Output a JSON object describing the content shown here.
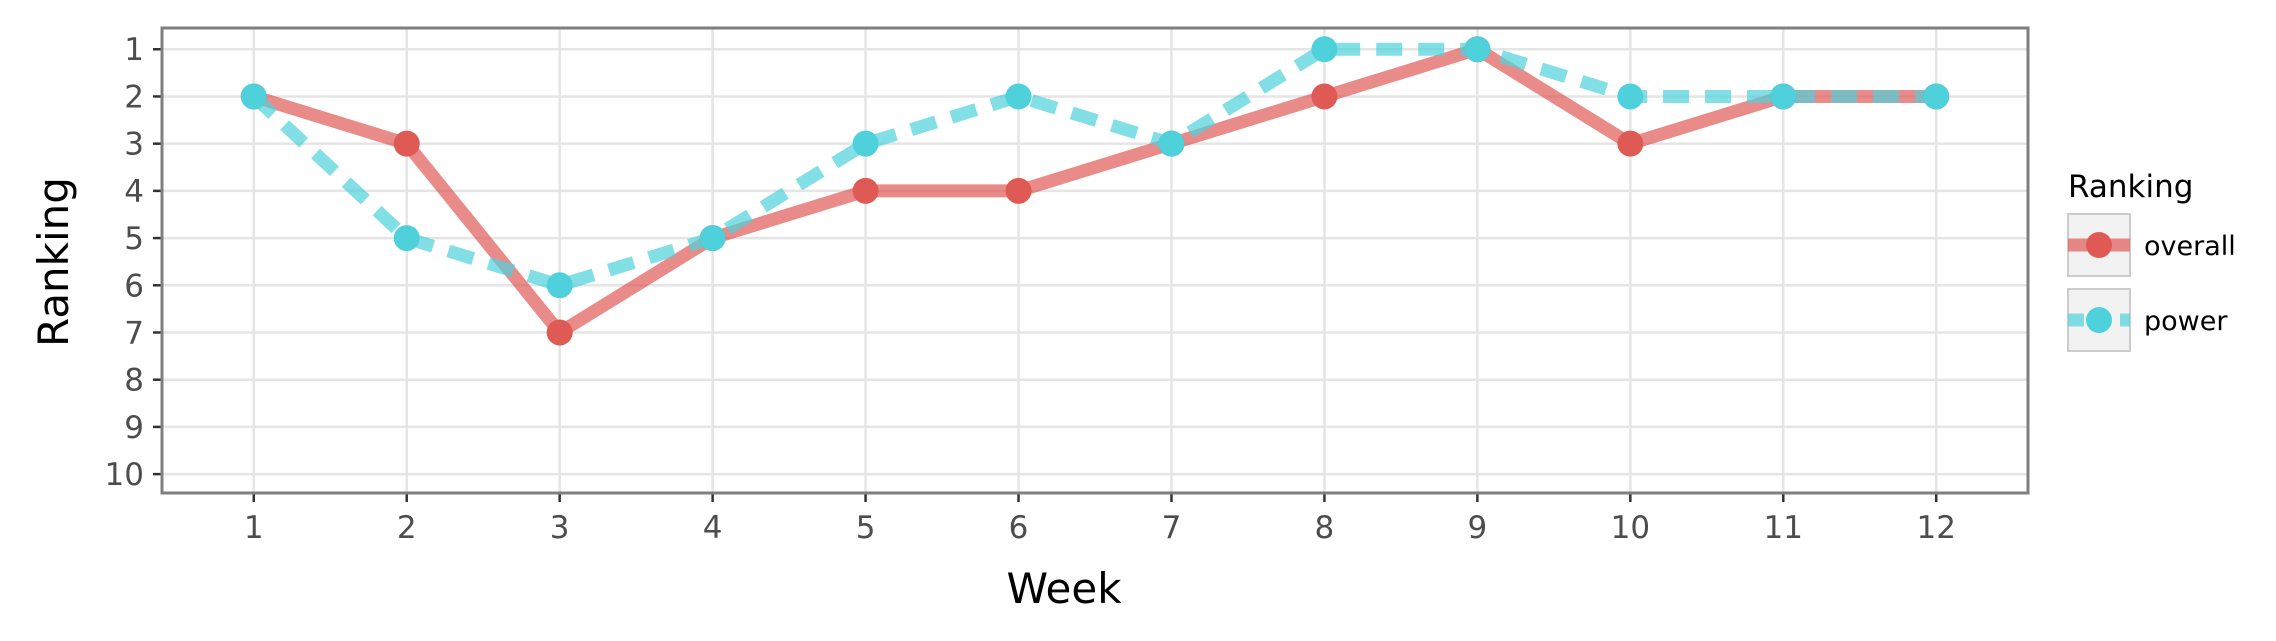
{
  "chart_data": {
    "type": "line",
    "xlabel": "Week",
    "ylabel": "Ranking",
    "x": [
      1,
      2,
      3,
      4,
      5,
      6,
      7,
      8,
      9,
      10,
      11,
      12
    ],
    "x_ticks": [
      "1",
      "2",
      "3",
      "4",
      "5",
      "6",
      "7",
      "8",
      "9",
      "10",
      "11",
      "12"
    ],
    "y_ticks": [
      "1",
      "2",
      "3",
      "4",
      "5",
      "6",
      "7",
      "8",
      "9",
      "10"
    ],
    "xlim": [
      0.4,
      12.6
    ],
    "ylim": [
      10.4,
      0.55
    ],
    "y_reversed": true,
    "grid": true,
    "legend": {
      "title": "Ranking",
      "position": "right"
    },
    "series": [
      {
        "name": "overall",
        "color": "#E05A55",
        "line_style": "solid",
        "values": [
          2,
          3,
          7,
          5,
          4,
          4,
          3,
          2,
          1,
          3,
          2,
          2
        ]
      },
      {
        "name": "power",
        "color": "#4FD1DC",
        "line_style": "dashed",
        "values": [
          2,
          5,
          6,
          5,
          3,
          2,
          3,
          1,
          1,
          2,
          2,
          2
        ]
      }
    ]
  }
}
